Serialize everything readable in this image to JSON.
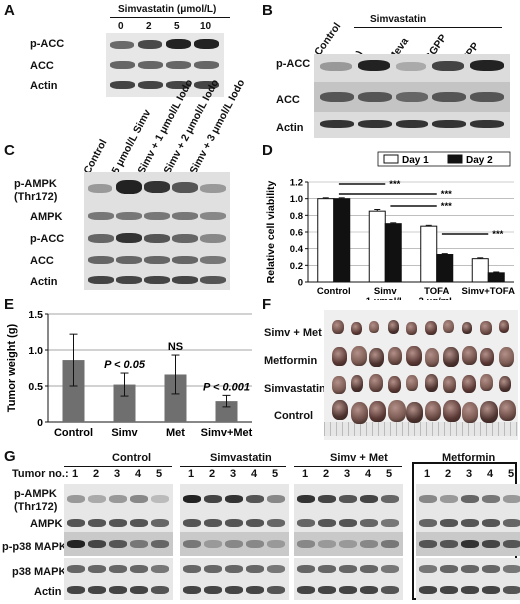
{
  "panels": {
    "A": {
      "letter": "A",
      "title": "Simvastatin (μmol/L)",
      "doses": [
        "0",
        "2",
        "5",
        "10"
      ],
      "rows": [
        "p-ACC",
        "ACC",
        "Actin"
      ]
    },
    "B": {
      "letter": "B",
      "title": "Simvastatin",
      "lanes": [
        "Control",
        "(-)",
        "Meva",
        "GGPP",
        "FPP"
      ],
      "rows": [
        "p-ACC",
        "ACC",
        "Actin"
      ]
    },
    "C": {
      "letter": "C",
      "lanes": [
        "Control",
        "5 μmol/L Simv",
        "Simv + 1 μmol/L Iodo",
        "Simv + 2 μmol/L Iodo",
        "Simv + 3 μmol/L Iodo"
      ],
      "rows": [
        "p-AMPK",
        "(Thr172)",
        "AMPK",
        "p-ACC",
        "ACC",
        "Actin"
      ]
    },
    "D": {
      "letter": "D",
      "sig": [
        "***",
        "***",
        "***",
        "***"
      ],
      "chart_data": {
        "type": "bar",
        "ylabel": "Relative cell viability",
        "ylim": [
          0,
          1.2
        ],
        "yticks": [
          "0",
          "0.2",
          "0.4",
          "0.6",
          "0.8",
          "1.0",
          "1.2"
        ],
        "categories": [
          "Control",
          "Simv\n1 μmol/L",
          "TOFA\n2 μg/mL",
          "Simv+TOFA"
        ],
        "category_lines": [
          [
            "Control"
          ],
          [
            "Simv",
            "1 μmol/L"
          ],
          [
            "TOFA",
            "2 μg/mL"
          ],
          [
            "Simv+TOFA"
          ]
        ],
        "series": [
          {
            "name": "Day 1",
            "values": [
              1.0,
              0.85,
              0.67,
              0.28
            ],
            "errors": [
              0.01,
              0.02,
              0.01,
              0.01
            ],
            "color": "#ffffff"
          },
          {
            "name": "Day 2",
            "values": [
              1.0,
              0.7,
              0.33,
              0.11
            ],
            "errors": [
              0.01,
              0.01,
              0.01,
              0.01
            ],
            "color": "#111111"
          }
        ],
        "legend": "top-right"
      }
    },
    "E": {
      "letter": "E",
      "annotations": [
        "P < 0.05",
        "NS",
        "P < 0.001"
      ],
      "chart_data": {
        "type": "bar",
        "ylabel": "Tumor weight (g)",
        "ylim": [
          0,
          1.5
        ],
        "yticks": [
          "0",
          "0.5",
          "1.0",
          "1.5"
        ],
        "categories": [
          "Control",
          "Simv",
          "Met",
          "Simv+Met"
        ],
        "values": [
          0.86,
          0.52,
          0.66,
          0.29
        ],
        "errors": [
          0.36,
          0.16,
          0.27,
          0.08
        ],
        "color": "#6f6f6f"
      }
    },
    "F": {
      "letter": "F",
      "rows": [
        "Simv + Met",
        "Metformin",
        "Simvastatin",
        "Control"
      ]
    },
    "G": {
      "letter": "G",
      "tumor_label": "Tumor no.:",
      "groups": [
        "Control",
        "Simvastatin",
        "Simv + Met",
        "Metformin"
      ],
      "numbers": [
        "1",
        "2",
        "3",
        "4",
        "5"
      ],
      "rows": [
        "p-AMPK",
        "(Thr172)",
        "AMPK",
        "p-p38 MAPK",
        "p38 MAPK",
        "Actin"
      ]
    }
  }
}
